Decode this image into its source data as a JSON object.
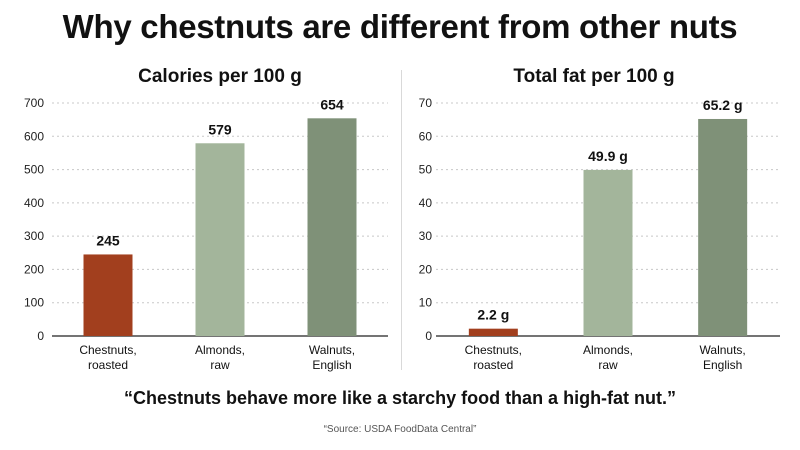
{
  "title": "Why chestnuts are different from other nuts",
  "quote": "“Chestnuts behave more like a starchy food than a high-fat nut.”",
  "source": "“Source: USDA FoodData Central”",
  "colors": {
    "chestnut": "#a23f1e",
    "almond": "#a3b59b",
    "walnut": "#7f9178",
    "grid": "#c8c8c8",
    "axis": "#222222"
  },
  "chart_data": [
    {
      "type": "bar",
      "title": "Calories per 100 g",
      "categories": [
        "Chestnuts, roasted",
        "Almonds, raw",
        "Walnuts, English"
      ],
      "category_lines": [
        [
          "Chestnuts,",
          "roasted"
        ],
        [
          "Almonds,",
          "raw"
        ],
        [
          "Walnuts,",
          "English"
        ]
      ],
      "values": [
        245,
        579,
        654
      ],
      "value_labels": [
        "245",
        "579",
        "654"
      ],
      "ylim": [
        0,
        700
      ],
      "yticks": [
        0,
        100,
        200,
        300,
        400,
        500,
        600,
        700
      ],
      "grid": true,
      "xlabel": "",
      "ylabel": ""
    },
    {
      "type": "bar",
      "title": "Total fat per 100 g",
      "categories": [
        "Chestnuts, roasted",
        "Almonds, raw",
        "Walnuts, English"
      ],
      "category_lines": [
        [
          "Chestnuts,",
          "roasted"
        ],
        [
          "Almonds,",
          "raw"
        ],
        [
          "Walnuts,",
          "English"
        ]
      ],
      "values": [
        2.2,
        49.9,
        65.2
      ],
      "value_labels": [
        "2.2 g",
        "49.9 g",
        "65.2 g"
      ],
      "ylim": [
        0,
        70
      ],
      "yticks": [
        0,
        10,
        20,
        30,
        40,
        50,
        60,
        70
      ],
      "grid": true,
      "xlabel": "",
      "ylabel": ""
    }
  ]
}
